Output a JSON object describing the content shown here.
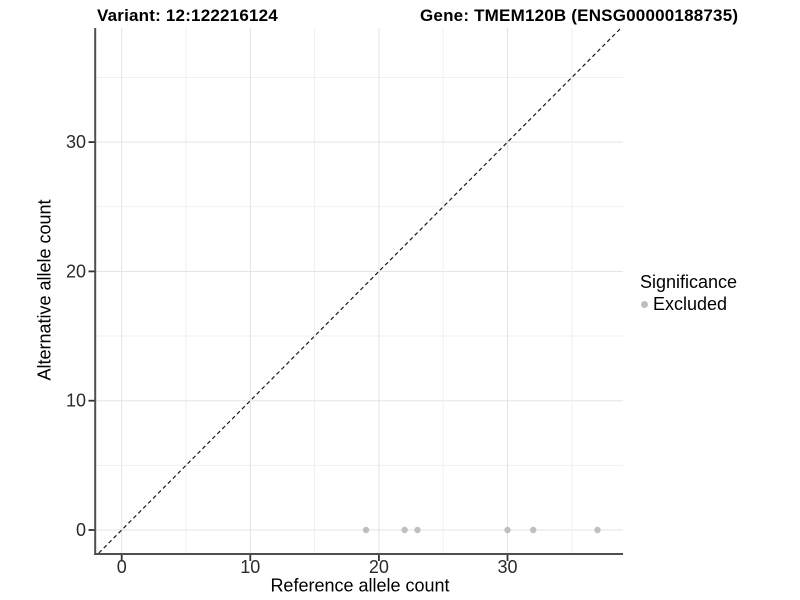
{
  "title": {
    "left": "Variant: 12:122216124",
    "right": "Gene: TMEM120B (ENSG00000188735)"
  },
  "chart_data": {
    "type": "scatter",
    "title": "Variant: 12:122216124   Gene: TMEM120B (ENSG00000188735)",
    "xlabel": "Reference allele count",
    "ylabel": "Alternative allele count",
    "xlim": [
      -2,
      39
    ],
    "ylim": [
      -1.8,
      38.8
    ],
    "x_ticks": [
      0,
      10,
      20,
      30
    ],
    "y_ticks": [
      0,
      10,
      20,
      30
    ],
    "grid_step": 5,
    "grid": true,
    "reference_line": {
      "kind": "identity y=x",
      "style": "dashed",
      "color": "#1a1a1a"
    },
    "series": [
      {
        "name": "Excluded",
        "color": "#bfbfbf",
        "points": [
          [
            19,
            0
          ],
          [
            22,
            0
          ],
          [
            23,
            0
          ],
          [
            30,
            0
          ],
          [
            32,
            0
          ],
          [
            37,
            0
          ]
        ]
      }
    ],
    "legend": {
      "title": "Significance",
      "position": "right",
      "items": [
        {
          "label": "Excluded",
          "color": "#bfbfbf"
        }
      ]
    }
  },
  "colors": {
    "background": "#ffffff",
    "point": "#bfbfbf",
    "grid_major": "#e3e3e3",
    "grid_minor": "#efefef",
    "axis_line": "#4f4f4f",
    "tick": "#333333",
    "text": "#2b2b2b",
    "dashed_line": "#1a1a1a"
  }
}
